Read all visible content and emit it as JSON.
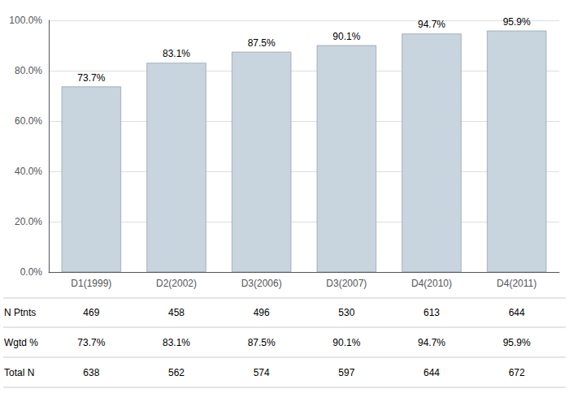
{
  "chart_data": {
    "type": "bar",
    "categories": [
      "D1(1999)",
      "D2(2002)",
      "D3(2006)",
      "D3(2007)",
      "D4(2010)",
      "D4(2011)"
    ],
    "values": [
      73.7,
      83.1,
      87.5,
      90.1,
      94.7,
      95.9
    ],
    "value_labels": [
      "73.7%",
      "83.1%",
      "87.5%",
      "90.1%",
      "94.7%",
      "95.9%"
    ],
    "data_labels": true,
    "color": "#c8d4de",
    "ylim": [
      0,
      100
    ],
    "yticks": [
      {
        "value": 0,
        "label": "0.0%"
      },
      {
        "value": 20,
        "label": "20.0%"
      },
      {
        "value": 40,
        "label": "40.0%"
      },
      {
        "value": 60,
        "label": "60.0%"
      },
      {
        "value": 80,
        "label": "80.0%"
      },
      {
        "value": 100,
        "label": "100.0%"
      }
    ],
    "grid": true,
    "table": [
      {
        "label": "N Ptnts",
        "values": [
          469,
          458,
          496,
          530,
          613,
          644
        ]
      },
      {
        "label": "Wgtd %",
        "values": [
          73.7,
          83.1,
          87.5,
          90.1,
          94.7,
          95.9
        ],
        "value_labels": [
          "73.7%",
          "83.1%",
          "87.5%",
          "90.1%",
          "94.7%",
          "95.9%"
        ]
      },
      {
        "label": "Total N",
        "values": [
          638,
          562,
          574,
          597,
          644,
          672
        ]
      }
    ]
  }
}
